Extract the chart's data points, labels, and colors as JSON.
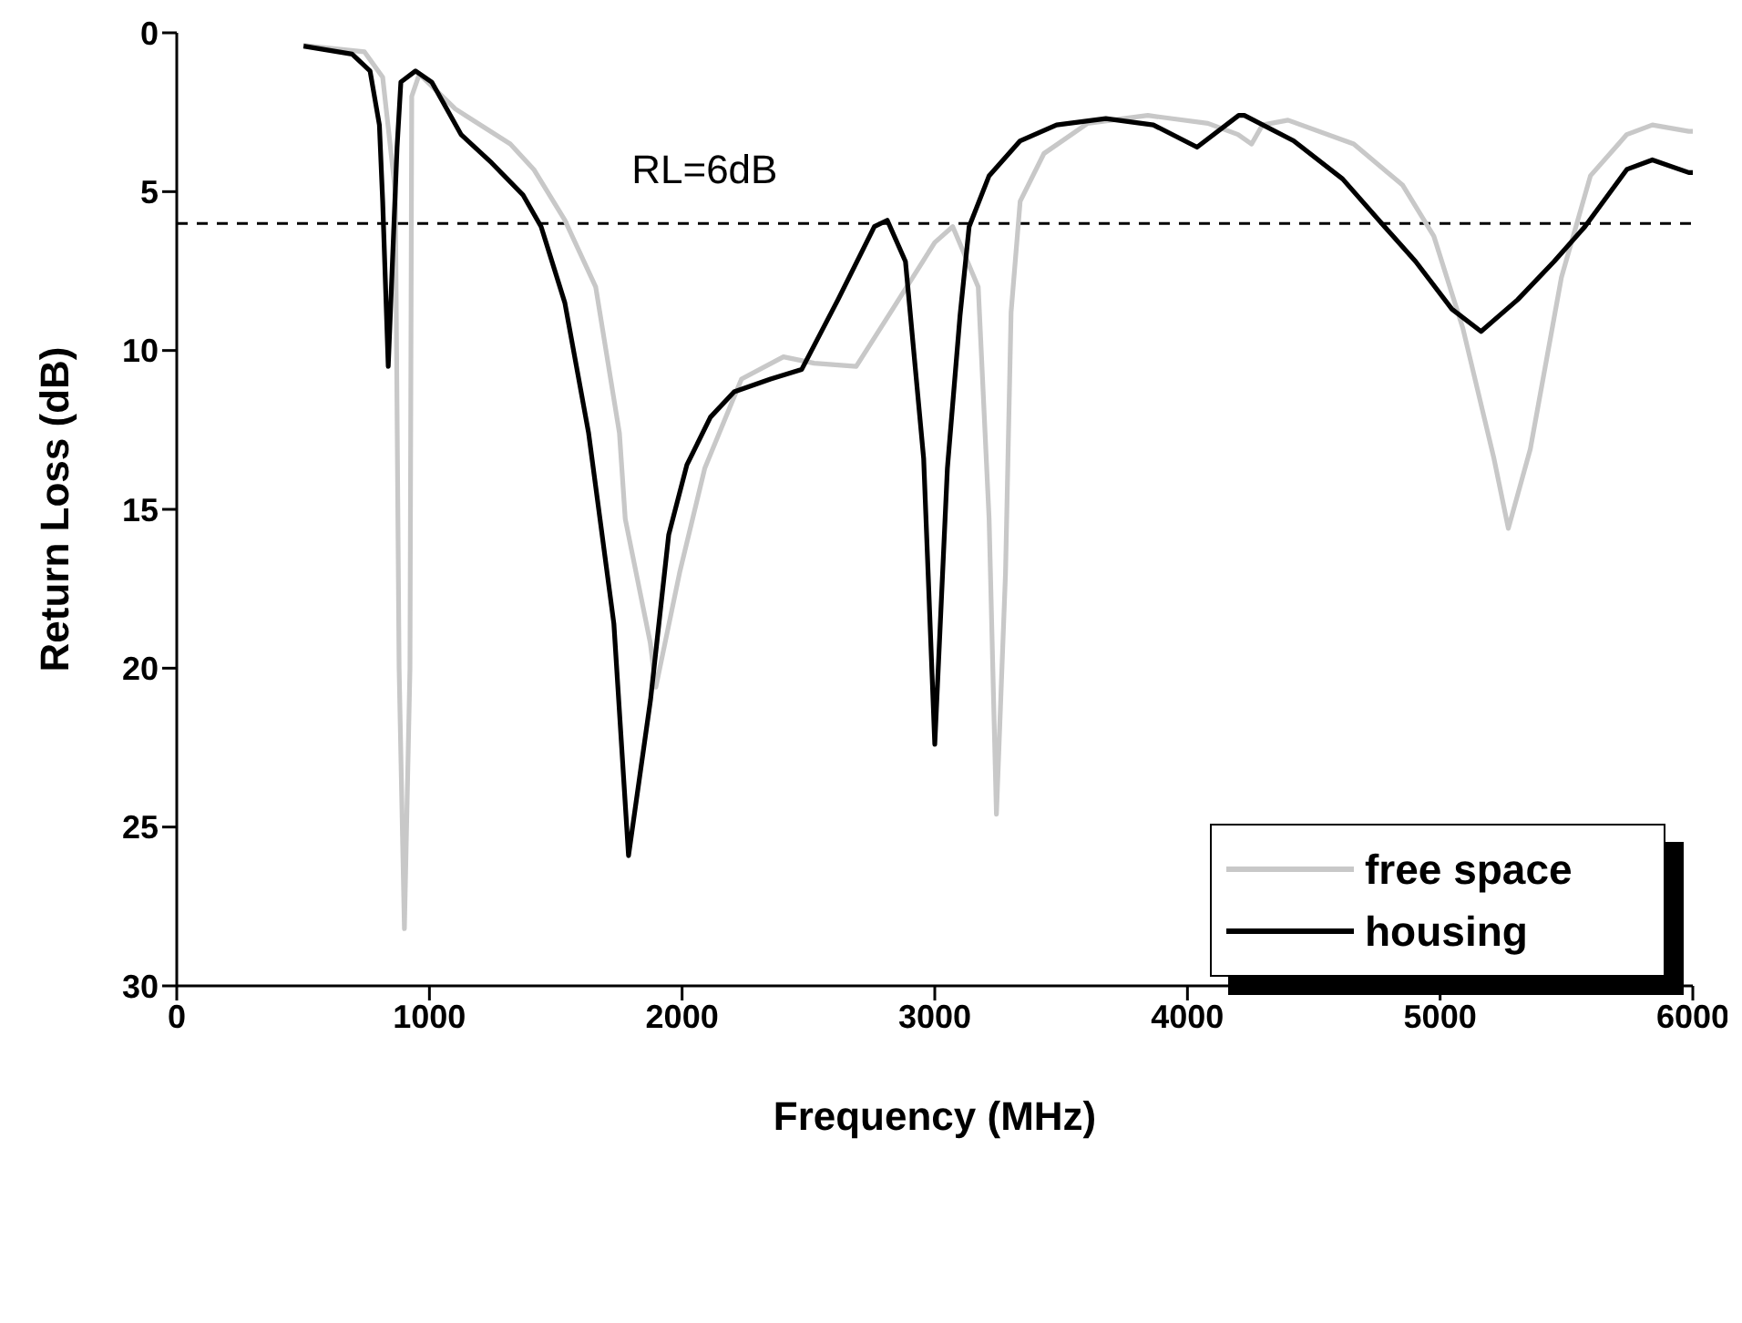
{
  "chart_data": {
    "type": "line",
    "xlabel": "Frequency (MHz)",
    "ylabel": "Return Loss (dB)",
    "xlim": [
      0,
      6000
    ],
    "xticks": [
      0,
      1000,
      2000,
      3000,
      4000,
      5000,
      6000
    ],
    "ylim": [
      30,
      0
    ],
    "yticks": [
      0,
      5,
      10,
      15,
      20,
      25,
      30
    ],
    "legend": "bottom right",
    "line_style": "solid",
    "marker": "none",
    "ref_lines": [
      {
        "axis": "y",
        "value": 6,
        "label": "RL=6dB",
        "line_style": "dashed",
        "color": "#000000"
      }
    ],
    "series": [
      {
        "name": "free space",
        "color": "#c8c8c8",
        "x": [
          500,
          743,
          815,
          865,
          880,
          901,
          923,
          930,
          960,
          1103,
          1320,
          1413,
          1536,
          1658,
          1752,
          1775,
          1874,
          1896,
          1990,
          2090,
          2235,
          2401,
          2523,
          2689,
          2833,
          3000,
          3071,
          3172,
          3215,
          3244,
          3280,
          3302,
          3338,
          3432,
          3605,
          3843,
          4081,
          4200,
          4254,
          4297,
          4398,
          4658,
          4852,
          4975,
          5090,
          5213,
          5270,
          5357,
          5480,
          5595,
          5739,
          5840,
          5984,
          6000
        ],
        "values": [
          0.4,
          0.6,
          1.4,
          5,
          20,
          28.2,
          20,
          2,
          1.3,
          2.4,
          3.5,
          4.3,
          5.9,
          8,
          12.6,
          15.3,
          19.2,
          20.6,
          17,
          13.7,
          10.9,
          10.2,
          10.4,
          10.5,
          8.7,
          6.6,
          6.1,
          8,
          15.3,
          24.6,
          17,
          8.8,
          5.3,
          3.8,
          2.85,
          2.6,
          2.85,
          3.2,
          3.5,
          2.9,
          2.75,
          3.5,
          4.8,
          6.4,
          9.3,
          13.4,
          15.6,
          13.1,
          7.7,
          4.5,
          3.2,
          2.9,
          3.1,
          3.1
        ]
      },
      {
        "name": "housing",
        "color": "#000000",
        "x": [
          502,
          694,
          765,
          802,
          815,
          837,
          872,
          887,
          945,
          1009,
          1125,
          1247,
          1370,
          1442,
          1536,
          1630,
          1730,
          1788,
          1875,
          1947,
          2019,
          2112,
          2206,
          2350,
          2473,
          2617,
          2761,
          2812,
          2884,
          2956,
          3000,
          3050,
          3100,
          3136,
          3215,
          3338,
          3482,
          3677,
          3865,
          4038,
          4203,
          4225,
          4420,
          4614,
          4780,
          4903,
          5047,
          5162,
          5307,
          5451,
          5573,
          5739,
          5840,
          5984,
          6000
        ],
        "values": [
          0.42,
          0.67,
          1.2,
          2.9,
          5.3,
          10.5,
          3.6,
          1.55,
          1.2,
          1.55,
          3.2,
          4.1,
          5.1,
          6.1,
          8.5,
          12.6,
          18.6,
          25.9,
          21,
          15.8,
          13.6,
          12.1,
          11.3,
          10.9,
          10.6,
          8.4,
          6.1,
          5.9,
          7.2,
          13.4,
          22.4,
          13.7,
          8.9,
          6.1,
          4.5,
          3.4,
          2.9,
          2.7,
          2.9,
          3.6,
          2.6,
          2.6,
          3.4,
          4.6,
          6.1,
          7.2,
          8.7,
          9.4,
          8.4,
          7.2,
          6.1,
          4.3,
          4,
          4.4,
          4.4
        ]
      }
    ]
  }
}
